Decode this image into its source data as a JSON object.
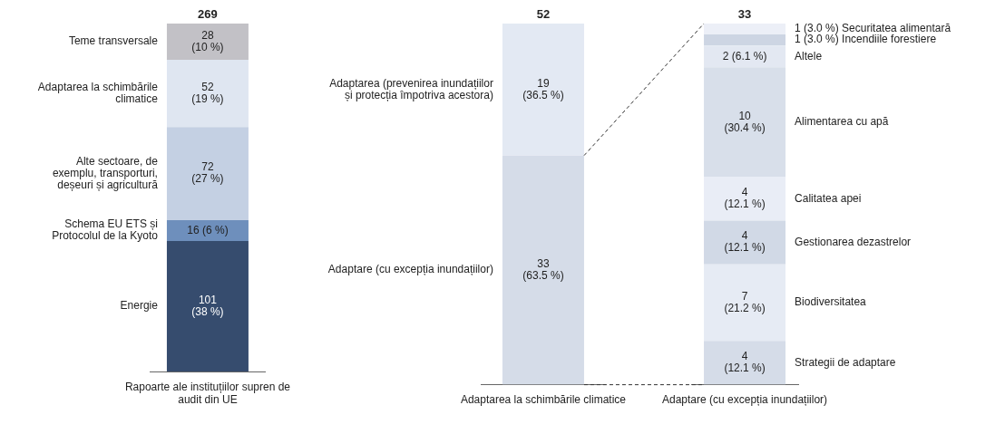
{
  "chart_data": [
    {
      "type": "bar",
      "stacked": true,
      "legend": false,
      "data_labels": false,
      "categories": [
        "Rapoarte ale instituțiilor supren de audit din UE"
      ],
      "totals": [
        "269"
      ],
      "series": [
        {
          "name": "Energie",
          "color": "#364c6e",
          "values": [
            101
          ],
          "value_labels": [
            "101 (38 %)"
          ]
        },
        {
          "name": "Schema EU ETS și Protocolul de la Kyoto",
          "color": "#6e8fbc",
          "values": [
            16
          ],
          "value_labels": [
            "16 (6 %)"
          ]
        },
        {
          "name": "Alte sectoare, de exemplu, transporturi, deșeuri și agricultură",
          "color": "#c4d0e3",
          "values": [
            72
          ],
          "value_labels": [
            "72 (27 %)"
          ]
        },
        {
          "name": "Adaptarea la schimbările climatice",
          "color": "#dfe6f1",
          "values": [
            52
          ],
          "value_labels": [
            "52 (19 %)"
          ]
        },
        {
          "name": "Teme transversale",
          "color": "#c2c1c6",
          "values": [
            28
          ],
          "value_labels": [
            "28 (10 %)"
          ]
        }
      ]
    },
    {
      "type": "bar",
      "stacked": true,
      "legend": false,
      "data_labels": false,
      "categories": [
        "Adaptarea la schimbările climatice"
      ],
      "totals": [
        "52"
      ],
      "series": [
        {
          "name": "Adaptare (cu excepția inundațiilor)",
          "color": "#d5dce8",
          "values": [
            33
          ],
          "value_labels": [
            "33 (63.5 %)"
          ]
        },
        {
          "name": "Adaptarea (prevenirea inundațiilor și protecția împotriva acestora)",
          "color": "#e3e9f3",
          "values": [
            19
          ],
          "value_labels": [
            "19 (36.5 %)"
          ]
        }
      ]
    },
    {
      "type": "bar",
      "stacked": true,
      "legend": false,
      "data_labels": false,
      "categories": [
        "Adaptare (cu excepția inundațiilor)"
      ],
      "totals": [
        "33"
      ],
      "series": [
        {
          "name": "Strategii de adaptare",
          "color": "#d5dce8",
          "values": [
            4
          ],
          "value_labels": [
            "4 (12.1 %)"
          ]
        },
        {
          "name": "Biodiversitatea",
          "color": "#e6ebf4",
          "values": [
            7
          ],
          "value_labels": [
            "7 (21.2 %)"
          ]
        },
        {
          "name": "Gestionarea dezastrelor",
          "color": "#d1d9e6",
          "values": [
            4
          ],
          "value_labels": [
            "4 (12.1 %)"
          ]
        },
        {
          "name": "Calitatea apei",
          "color": "#e9edf6",
          "values": [
            4
          ],
          "value_labels": [
            "4 (12.1 %)"
          ]
        },
        {
          "name": "Alimentarea cu apă",
          "color": "#d8dfea",
          "values": [
            10
          ],
          "value_labels": [
            "10 (30.4 %)"
          ]
        },
        {
          "name": "Altele",
          "color": "#e3e8f2",
          "values": [
            2
          ],
          "value_labels": [
            "2 (6.1 %)"
          ]
        },
        {
          "name": "Incendiile forestiere",
          "color": "#cdd5e3",
          "values": [
            1
          ],
          "value_labels": [
            "1 (3.0 %)"
          ]
        },
        {
          "name": "Securitatea alimentară",
          "color": "#eceff7",
          "values": [
            1
          ],
          "value_labels": [
            "1 (3.0 %)"
          ]
        }
      ]
    }
  ]
}
